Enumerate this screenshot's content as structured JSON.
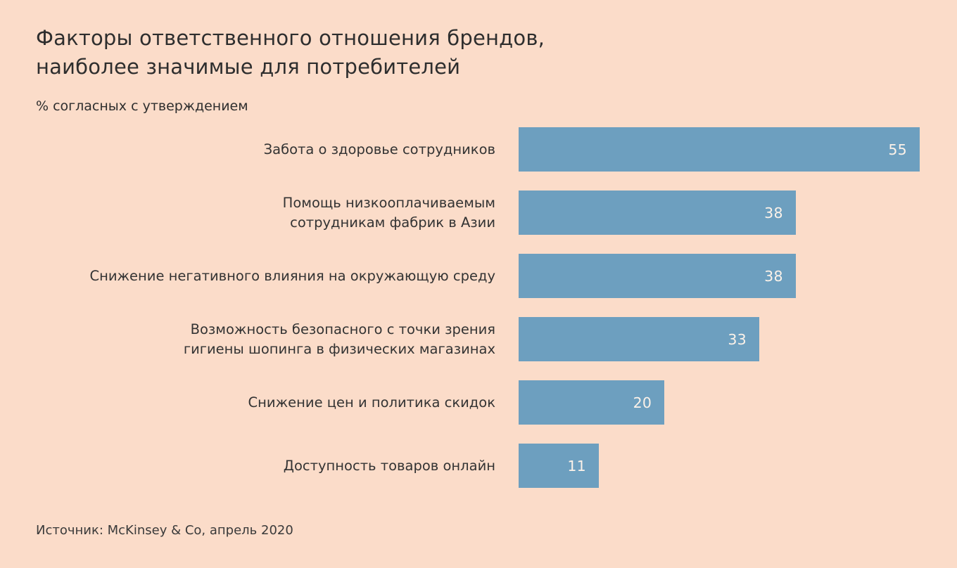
{
  "chart": {
    "title": "Факторы ответственного отношения брендов,\nнаиболее значимые для потребителей",
    "subtitle": "% согласных с утверждением",
    "source": "Источник: McKinsey & Co, апрель 2020"
  },
  "chart_data": {
    "type": "bar",
    "orientation": "horizontal",
    "title": "Факторы ответственного отношения брендов, наиболее значимые для потребителей",
    "subtitle": "% согласных с утверждением",
    "categories": [
      "Забота о здоровье сотрудников",
      "Помощь низкооплачиваемым\nсотрудникам фабрик в Азии",
      "Снижение негативного влияния на окружающую среду",
      "Возможность безопасного с точки зрения\nгигиены шопинга в физических магазинах",
      "Снижение цен и политика скидок",
      "Доступность товаров онлайн"
    ],
    "values": [
      55,
      38,
      38,
      33,
      20,
      11
    ],
    "xlim": [
      0,
      55
    ],
    "value_labels": "inside-right",
    "legend": "none",
    "grid": false,
    "bar_color": "#6d9fbf",
    "value_label_color": "#fcf2e9",
    "background_color": "#fbdcc9",
    "source": "Источник: McKinsey & Co, апрель 2020"
  }
}
